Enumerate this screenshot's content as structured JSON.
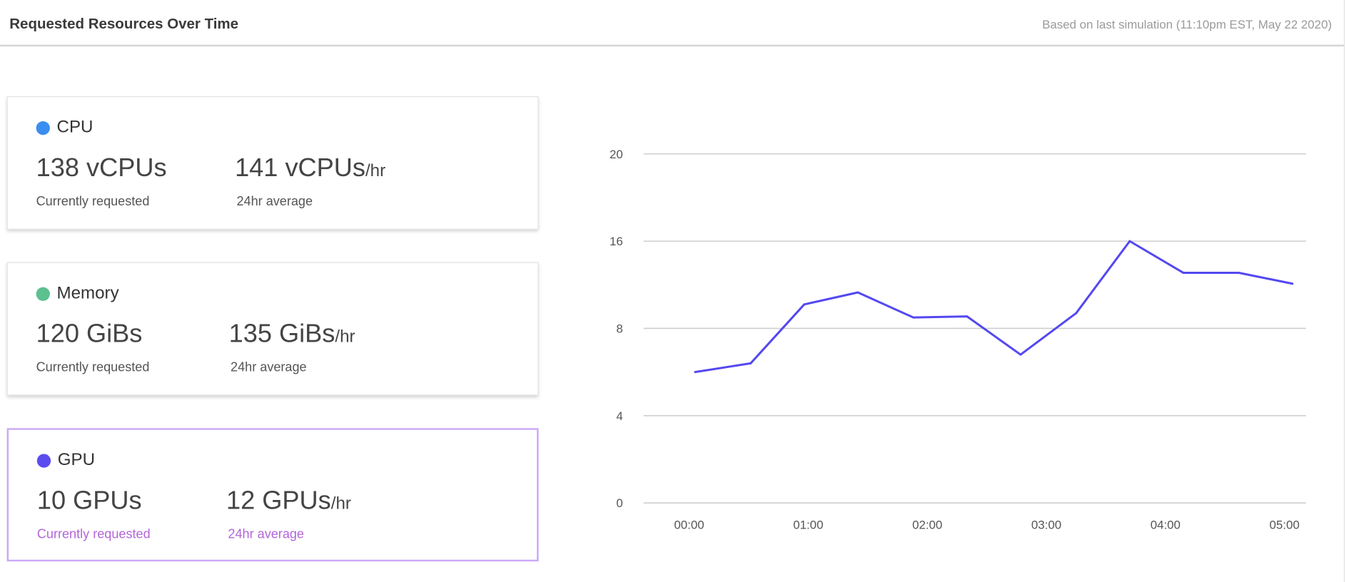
{
  "header": {
    "title": "Requested Resources Over Time",
    "subtitle": "Based on last simulation (11:10pm EST, May 22 2020)"
  },
  "cards": [
    {
      "label": "CPU",
      "color": "#3b8ef0",
      "current": "138 vCPUs",
      "average": "141 vCPUs",
      "avg_unit": "/hr",
      "current_caption": "Currently requested",
      "average_caption": "24hr average",
      "selected": false
    },
    {
      "label": "Memory",
      "color": "#5cc08f",
      "current": "120 GiBs",
      "average": "135 GiBs",
      "avg_unit": "/hr",
      "current_caption": "Currently requested",
      "average_caption": "24hr average",
      "selected": false
    },
    {
      "label": "GPU",
      "color": "#5b4cf0",
      "current": "10 GPUs",
      "average": "12 GPUs",
      "avg_unit": "/hr",
      "current_caption": "Currently requested",
      "average_caption": "24hr average",
      "selected": true
    }
  ],
  "chart_data": {
    "type": "line",
    "title": "",
    "xlabel": "",
    "ylabel": "",
    "y_ticks": [
      "0",
      "4",
      "8",
      "16",
      "20"
    ],
    "x_ticks": [
      "00:00",
      "01:00",
      "02:00",
      "03:00",
      "04:00",
      "05:00"
    ],
    "grid": true,
    "line_color": "#5448f0",
    "x": [
      "00:03",
      "00:31",
      "00:58",
      "01:25",
      "01:53",
      "02:20",
      "02:47",
      "03:15",
      "03:42",
      "04:09",
      "04:37",
      "05:04"
    ],
    "values": [
      6.0,
      6.4,
      10.2,
      11.3,
      9.0,
      9.1,
      6.8,
      9.4,
      16.0,
      13.1,
      13.1,
      12.1
    ]
  }
}
